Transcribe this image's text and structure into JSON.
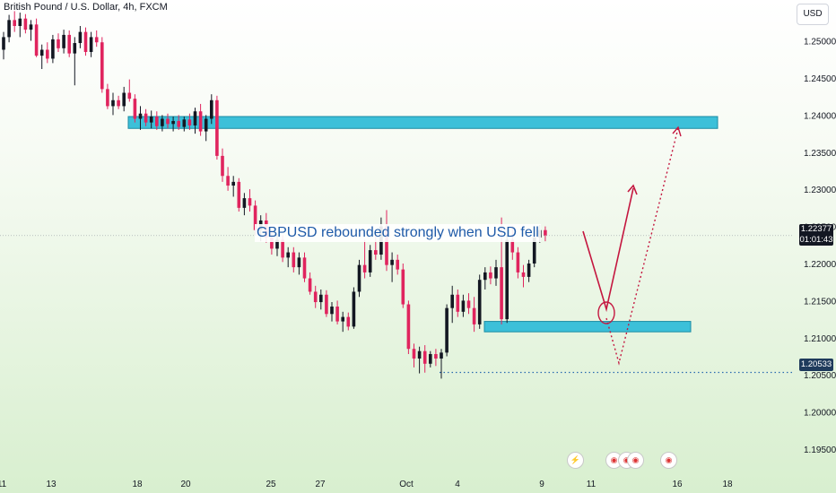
{
  "chart_data": {
    "type": "candlestick",
    "title": "British Pound / U.S. Dollar, 4h, FXCM",
    "currency_button": "USD",
    "annotation": "GBPUSD rebounded strongly when USD fell",
    "y_ticks": [
      "1.25000",
      "1.24500",
      "1.24000",
      "1.23500",
      "1.23000",
      "1.22500",
      "1.22000",
      "1.21500",
      "1.21000",
      "1.20500",
      "1.20000",
      "1.19500"
    ],
    "y_tick_values": [
      1.25,
      1.245,
      1.24,
      1.235,
      1.23,
      1.225,
      1.22,
      1.215,
      1.21,
      1.205,
      1.2,
      1.195
    ],
    "ylim": [
      1.1915,
      1.2555
    ],
    "x_ticks": [
      "11",
      "13",
      "18",
      "20",
      "25",
      "27",
      "Oct",
      "4",
      "9",
      "11",
      "16",
      "18"
    ],
    "last_price": "1.22377",
    "countdown": "01:01:43",
    "recent_low": "1.20533",
    "zones": [
      {
        "name": "resistance",
        "top": 1.2398,
        "bottom": 1.2382,
        "color": "#3cc0d9"
      },
      {
        "name": "support",
        "top": 1.2122,
        "bottom": 1.2108,
        "color": "#3cc0d9"
      }
    ],
    "up_color": "#131722",
    "down_color": "#e0245e",
    "candles": [
      [
        1.2488,
        1.2512,
        1.2475,
        1.2505
      ],
      [
        1.2505,
        1.2535,
        1.2498,
        1.2528
      ],
      [
        1.2528,
        1.254,
        1.2512,
        1.252
      ],
      [
        1.252,
        1.2538,
        1.2505,
        1.253
      ],
      [
        1.253,
        1.2536,
        1.251,
        1.2515
      ],
      [
        1.2515,
        1.2528,
        1.25,
        1.2522
      ],
      [
        1.2522,
        1.253,
        1.2478,
        1.248
      ],
      [
        1.248,
        1.2495,
        1.2462,
        1.2488
      ],
      [
        1.2488,
        1.2498,
        1.247,
        1.2476
      ],
      [
        1.2476,
        1.2508,
        1.247,
        1.2502
      ],
      [
        1.2502,
        1.251,
        1.2485,
        1.249
      ],
      [
        1.249,
        1.2515,
        1.2483,
        1.2508
      ],
      [
        1.2508,
        1.2514,
        1.2478,
        1.2483
      ],
      [
        1.2483,
        1.2505,
        1.244,
        1.2497
      ],
      [
        1.2497,
        1.252,
        1.249,
        1.2512
      ],
      [
        1.2512,
        1.2518,
        1.248,
        1.2485
      ],
      [
        1.2485,
        1.2512,
        1.2478,
        1.2505
      ],
      [
        1.2505,
        1.2514,
        1.2492,
        1.2498
      ],
      [
        1.2498,
        1.2505,
        1.243,
        1.2435
      ],
      [
        1.2435,
        1.2442,
        1.2408,
        1.2412
      ],
      [
        1.2412,
        1.243,
        1.24,
        1.242
      ],
      [
        1.242,
        1.2426,
        1.2408,
        1.2412
      ],
      [
        1.2412,
        1.2438,
        1.2405,
        1.243
      ],
      [
        1.243,
        1.2448,
        1.2418,
        1.2422
      ],
      [
        1.2422,
        1.2428,
        1.239,
        1.2395
      ],
      [
        1.2395,
        1.2412,
        1.238,
        1.2402
      ],
      [
        1.2402,
        1.2408,
        1.2385,
        1.239
      ],
      [
        1.239,
        1.2406,
        1.2382,
        1.2398
      ],
      [
        1.2398,
        1.2405,
        1.238,
        1.2385
      ],
      [
        1.2385,
        1.24,
        1.2378,
        1.2395
      ],
      [
        1.2395,
        1.2402,
        1.2382,
        1.2388
      ],
      [
        1.2388,
        1.2398,
        1.2378,
        1.2392
      ],
      [
        1.2392,
        1.24,
        1.238,
        1.2384
      ],
      [
        1.2384,
        1.2398,
        1.2378,
        1.2394
      ],
      [
        1.2394,
        1.2402,
        1.238,
        1.2386
      ],
      [
        1.2386,
        1.241,
        1.2375,
        1.2405
      ],
      [
        1.2405,
        1.2415,
        1.2372,
        1.2378
      ],
      [
        1.2378,
        1.24,
        1.2365,
        1.2395
      ],
      [
        1.2395,
        1.2428,
        1.2388,
        1.242
      ],
      [
        1.242,
        1.2426,
        1.234,
        1.2345
      ],
      [
        1.2345,
        1.2355,
        1.231,
        1.2318
      ],
      [
        1.2318,
        1.233,
        1.2298,
        1.2305
      ],
      [
        1.2305,
        1.2318,
        1.229,
        1.231
      ],
      [
        1.231,
        1.2315,
        1.227,
        1.2275
      ],
      [
        1.2275,
        1.2295,
        1.2265,
        1.2288
      ],
      [
        1.2288,
        1.23,
        1.227,
        1.2278
      ],
      [
        1.2278,
        1.2285,
        1.2238,
        1.2245
      ],
      [
        1.2245,
        1.2265,
        1.223,
        1.2258
      ],
      [
        1.2258,
        1.2268,
        1.2228,
        1.2235
      ],
      [
        1.2235,
        1.2245,
        1.2212,
        1.222
      ],
      [
        1.222,
        1.224,
        1.221,
        1.2232
      ],
      [
        1.2232,
        1.2238,
        1.2202,
        1.2208
      ],
      [
        1.2208,
        1.2222,
        1.2195,
        1.2215
      ],
      [
        1.2215,
        1.2222,
        1.2188,
        1.2195
      ],
      [
        1.2195,
        1.2215,
        1.2185,
        1.2208
      ],
      [
        1.2208,
        1.2215,
        1.2175,
        1.218
      ],
      [
        1.218,
        1.2188,
        1.2158,
        1.2162
      ],
      [
        1.2162,
        1.217,
        1.214,
        1.2148
      ],
      [
        1.2148,
        1.2165,
        1.2138,
        1.2158
      ],
      [
        1.2158,
        1.2164,
        1.2128,
        1.2132
      ],
      [
        1.2132,
        1.2148,
        1.2122,
        1.2142
      ],
      [
        1.2142,
        1.215,
        1.2118,
        1.2122
      ],
      [
        1.2122,
        1.2135,
        1.2108,
        1.2128
      ],
      [
        1.2128,
        1.2134,
        1.211,
        1.2115
      ],
      [
        1.2115,
        1.2168,
        1.2112,
        1.2162
      ],
      [
        1.2162,
        1.2205,
        1.2155,
        1.2198
      ],
      [
        1.2198,
        1.2232,
        1.218,
        1.2188
      ],
      [
        1.2188,
        1.2225,
        1.2182,
        1.2218
      ],
      [
        1.2218,
        1.2245,
        1.2205,
        1.2212
      ],
      [
        1.2212,
        1.2262,
        1.2205,
        1.225
      ],
      [
        1.225,
        1.2272,
        1.219,
        1.2198
      ],
      [
        1.2198,
        1.2215,
        1.2175,
        1.2205
      ],
      [
        1.2205,
        1.2212,
        1.2185,
        1.2192
      ],
      [
        1.2192,
        1.22,
        1.214,
        1.2145
      ],
      [
        1.2145,
        1.215,
        1.2078,
        1.2085
      ],
      [
        1.2085,
        1.2092,
        1.206,
        1.2072
      ],
      [
        1.2072,
        1.2088,
        1.2052,
        1.2082
      ],
      [
        1.2082,
        1.209,
        1.2053,
        1.2065
      ],
      [
        1.2065,
        1.2082,
        1.206,
        1.2078
      ],
      [
        1.2078,
        1.2085,
        1.2062,
        1.2072
      ],
      [
        1.2072,
        1.2085,
        1.2045,
        1.208
      ],
      [
        1.208,
        1.2145,
        1.2075,
        1.214
      ],
      [
        1.214,
        1.217,
        1.212,
        1.2158
      ],
      [
        1.2158,
        1.2165,
        1.2128,
        1.2135
      ],
      [
        1.2135,
        1.2158,
        1.2128,
        1.215
      ],
      [
        1.215,
        1.216,
        1.2132,
        1.214
      ],
      [
        1.214,
        1.2155,
        1.2108,
        1.2118
      ],
      [
        1.2118,
        1.2185,
        1.2112,
        1.2178
      ],
      [
        1.2178,
        1.2195,
        1.2165,
        1.2188
      ],
      [
        1.2188,
        1.2196,
        1.2172,
        1.218
      ],
      [
        1.218,
        1.2205,
        1.217,
        1.2195
      ],
      [
        1.2195,
        1.2262,
        1.2118,
        1.2125
      ],
      [
        1.2125,
        1.2238,
        1.212,
        1.2232
      ],
      [
        1.2232,
        1.225,
        1.2205,
        1.2215
      ],
      [
        1.2215,
        1.2222,
        1.218,
        1.2188
      ],
      [
        1.2188,
        1.2198,
        1.2168,
        1.2182
      ],
      [
        1.2182,
        1.2205,
        1.2175,
        1.22
      ],
      [
        1.22,
        1.2242,
        1.2195,
        1.2235
      ],
      [
        1.2235,
        1.2252,
        1.2228,
        1.2245
      ],
      [
        1.2245,
        1.225,
        1.223,
        1.2238
      ]
    ]
  }
}
